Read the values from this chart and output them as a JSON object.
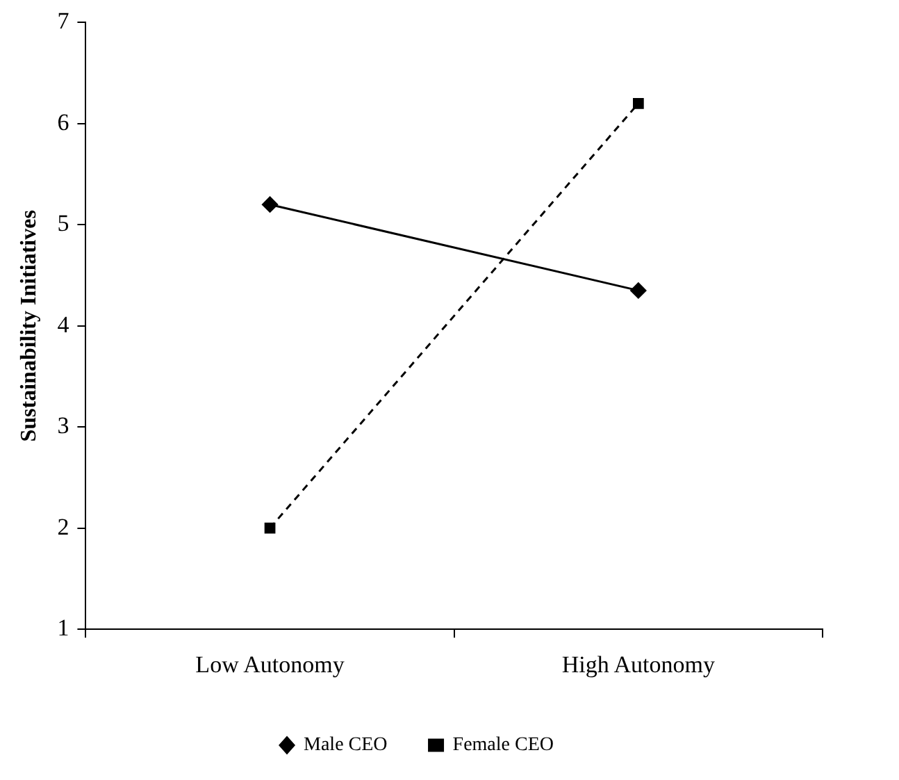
{
  "chart_data": {
    "type": "line",
    "ylabel": "Sustainability Initiatives",
    "categories": [
      "Low Autonomy",
      "High Autonomy"
    ],
    "series": [
      {
        "name": "Male CEO",
        "color": "#000000",
        "values": [
          5.2,
          4.35
        ],
        "marker": "diamond",
        "line_style": "solid"
      },
      {
        "name": "Female CEO",
        "color": "#000000",
        "values": [
          2.0,
          6.2
        ],
        "marker": "square",
        "line_style": "dashed"
      }
    ],
    "ylim": [
      1,
      7
    ],
    "yticks": [
      1,
      2,
      3,
      4,
      5,
      6,
      7
    ],
    "grid": false,
    "legend": "bottom"
  }
}
